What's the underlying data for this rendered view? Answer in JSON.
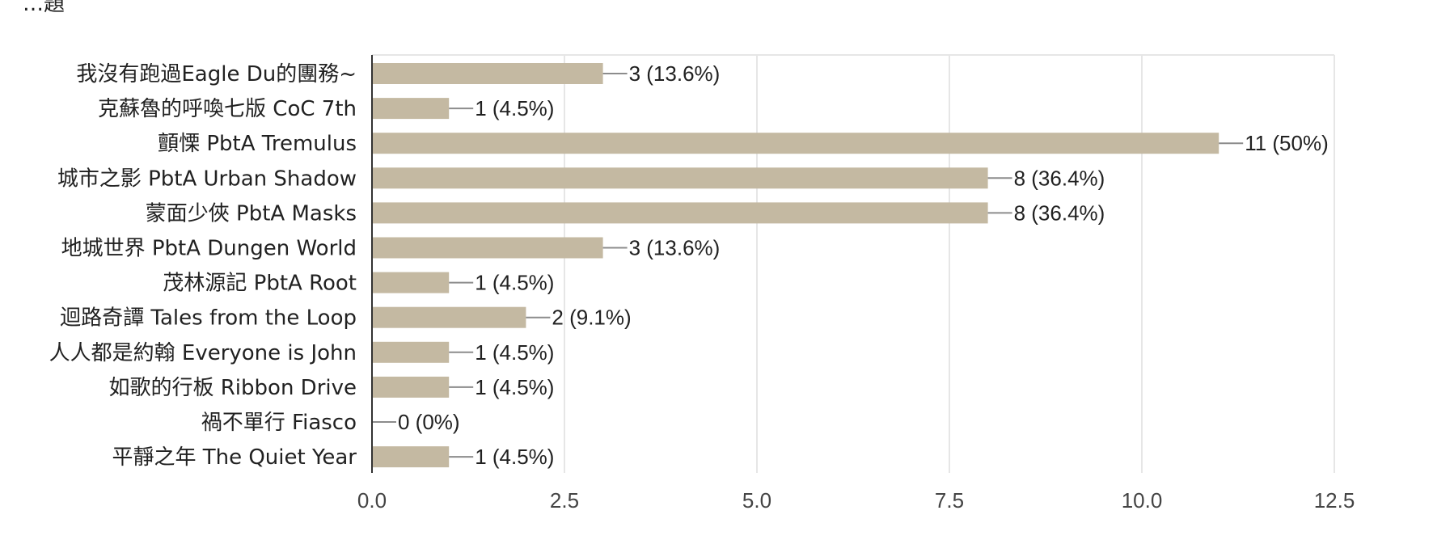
{
  "header_fragment": "…題",
  "chart_data": {
    "type": "bar",
    "orientation": "horizontal",
    "categories": [
      "我沒有跑過Eagle Du的團務~",
      "克蘇魯的呼喚七版 CoC 7th",
      "顫慄 PbtA Tremulus",
      "城市之影 PbtA Urban Shadow",
      "蒙面少俠 PbtA Masks",
      "地城世界 PbtA Dungen World",
      "茂林源記 PbtA Root",
      "迴路奇譚 Tales from the Loop",
      "人人都是約翰 Everyone is John",
      "如歌的行板 Ribbon Drive",
      "禍不單行 Fiasco",
      "平靜之年 The Quiet Year"
    ],
    "values": [
      3,
      1,
      11,
      8,
      8,
      3,
      1,
      2,
      1,
      1,
      0,
      1
    ],
    "data_labels": [
      "3 (13.6%)",
      "1 (4.5%)",
      "11 (50%)",
      "8 (36.4%)",
      "8 (36.4%)",
      "3 (13.6%)",
      "1 (4.5%)",
      "2 (9.1%)",
      "1 (4.5%)",
      "1 (4.5%)",
      "0 (0%)",
      "1 (4.5%)"
    ],
    "x_ticks": [
      "0.0",
      "2.5",
      "5.0",
      "7.5",
      "10.0",
      "12.5"
    ],
    "xlim": [
      0,
      12.5
    ],
    "grid": true,
    "bar_color": "#c4b9a2",
    "grid_color": "#e6e6e6",
    "axis_color": "#333333",
    "title": "",
    "xlabel": "",
    "ylabel": ""
  }
}
